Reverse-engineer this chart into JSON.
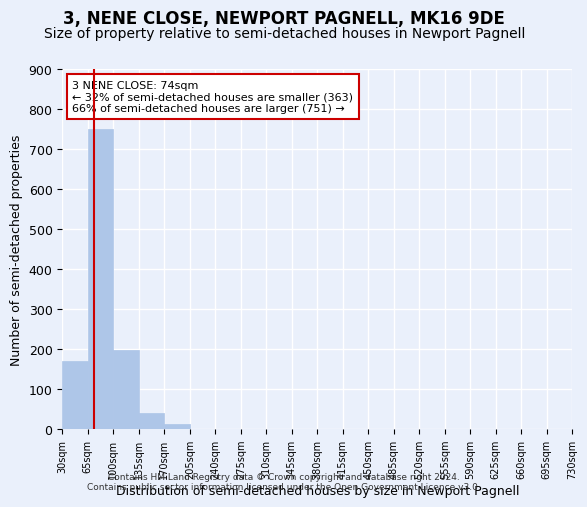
{
  "title": "3, NENE CLOSE, NEWPORT PAGNELL, MK16 9DE",
  "subtitle": "Size of property relative to semi-detached houses in Newport Pagnell",
  "xlabel": "Distribution of semi-detached houses by size in Newport Pagnell",
  "ylabel": "Number of semi-detached properties",
  "bin_edges": [
    30,
    65,
    100,
    135,
    170,
    205,
    240,
    275,
    310,
    345,
    380,
    415,
    450,
    485,
    520,
    555,
    590,
    625,
    660,
    695,
    730
  ],
  "bar_heights": [
    170,
    751,
    197,
    40,
    12,
    0,
    0,
    0,
    0,
    0,
    0,
    0,
    0,
    0,
    0,
    0,
    0,
    0,
    0,
    0
  ],
  "bar_color": "#aec6e8",
  "bar_edgecolor": "#aec6e8",
  "subject_size": 74,
  "subject_line_color": "#cc0000",
  "annotation_line1": "3 NENE CLOSE: 74sqm",
  "annotation_line2": "← 32% of semi-detached houses are smaller (363)",
  "annotation_line3": "66% of semi-detached houses are larger (751) →",
  "annotation_box_color": "#ffffff",
  "annotation_box_edgecolor": "#cc0000",
  "ylim": [
    0,
    900
  ],
  "background_color": "#eaf0fb",
  "grid_color": "#ffffff",
  "footer_line1": "Contains HM Land Registry data © Crown copyright and database right 2024.",
  "footer_line2": "Contains public sector information licensed under the Open Government Licence v3.0.",
  "title_fontsize": 12,
  "subtitle_fontsize": 10,
  "yticks": [
    0,
    100,
    200,
    300,
    400,
    500,
    600,
    700,
    800,
    900
  ]
}
